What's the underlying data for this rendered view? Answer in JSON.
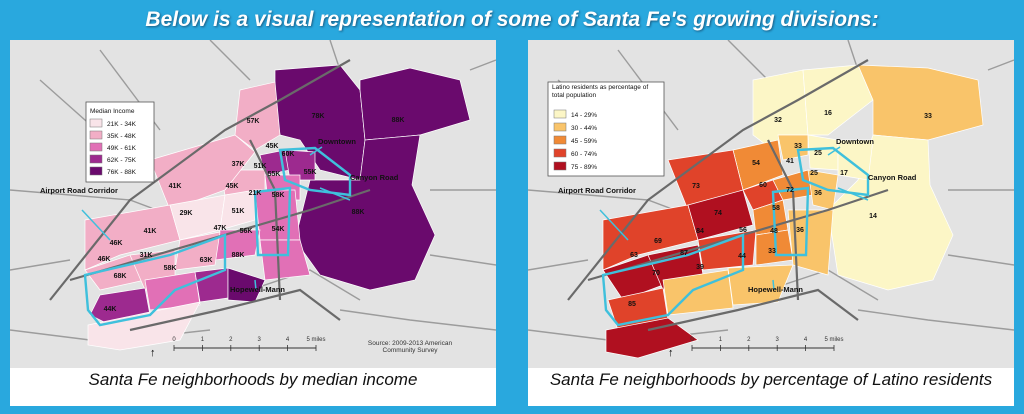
{
  "header": {
    "title": "Below is a visual representation of some of Santa Fe's growing divisions:"
  },
  "colors": {
    "background": "#29a8de",
    "corridor_outline": "#3fc0dc",
    "income_ramp": [
      "#f9e4e9",
      "#f2aec6",
      "#e170b6",
      "#9d2a8f",
      "#6a0a6d"
    ],
    "latino_ramp": [
      "#fcf6c6",
      "#f9c46a",
      "#f08a36",
      "#e0432a",
      "#b01020"
    ]
  },
  "income_map": {
    "caption": "Santa Fe neighborhoods by median income",
    "legend": {
      "title": "Median Income",
      "items": [
        {
          "label": "21K - 34K",
          "color": "#f9e4e9"
        },
        {
          "label": "35K - 48K",
          "color": "#f2aec6"
        },
        {
          "label": "49K - 61K",
          "color": "#e170b6"
        },
        {
          "label": "62K - 75K",
          "color": "#9d2a8f"
        },
        {
          "label": "76K - 88K",
          "color": "#6a0a6d"
        }
      ]
    },
    "area_labels": [
      "78K",
      "88K",
      "57K",
      "45K",
      "60K",
      "55K",
      "37K",
      "51K",
      "41K",
      "21K",
      "58K",
      "45K",
      "29K",
      "51K",
      "55K",
      "88K",
      "47K",
      "54K",
      "56K",
      "41K",
      "46K",
      "46K",
      "31K",
      "68K",
      "58K",
      "63K",
      "88K",
      "44K"
    ],
    "places": {
      "downtown": "Downtown",
      "canyon_road": "Canyon Road",
      "airport_road": "Airport Road Corridor",
      "hopewell_mann": "Hopewell-Mann"
    },
    "source": "Source: 2009-2013 American Community Survey",
    "scale": {
      "ticks": [
        "0",
        "1",
        "2",
        "3",
        "4",
        "5 miles"
      ]
    }
  },
  "latino_map": {
    "caption": "Santa Fe neighborhoods by percentage of Latino residents",
    "legend": {
      "title": "Latino residents as percentage of total population",
      "items": [
        {
          "label": "14 - 29%",
          "color": "#fcf6c6"
        },
        {
          "label": "30 - 44%",
          "color": "#f9c46a"
        },
        {
          "label": "45 - 59%",
          "color": "#f08a36"
        },
        {
          "label": "60 - 74%",
          "color": "#e0432a"
        },
        {
          "label": "75 - 89%",
          "color": "#b01020"
        }
      ]
    },
    "area_labels": [
      "32",
      "16",
      "33",
      "33",
      "41",
      "25",
      "54",
      "25",
      "17",
      "73",
      "60",
      "72",
      "36",
      "14",
      "74",
      "58",
      "84",
      "56",
      "48",
      "36",
      "69",
      "87",
      "63",
      "70",
      "39",
      "44",
      "33",
      "85"
    ],
    "places": {
      "downtown": "Downtown",
      "canyon_road": "Canyon Road",
      "airport_road": "Airport Road Corridor",
      "hopewell_mann": "Hopewell-Mann"
    },
    "scale": {
      "ticks": [
        "0",
        "1",
        "2",
        "3",
        "4",
        "5 miles"
      ]
    }
  }
}
